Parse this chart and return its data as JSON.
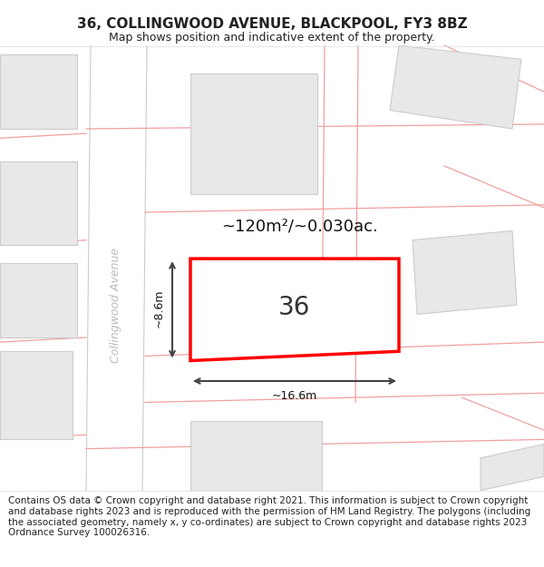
{
  "title": "36, COLLINGWOOD AVENUE, BLACKPOOL, FY3 8BZ",
  "subtitle": "Map shows position and indicative extent of the property.",
  "footer": "Contains OS data © Crown copyright and database right 2021. This information is subject to Crown copyright and database rights 2023 and is reproduced with the permission of HM Land Registry. The polygons (including the associated geometry, namely x, y co-ordinates) are subject to Crown copyright and database rights 2023 Ordnance Survey 100026316.",
  "area_label": "~120m²/~0.030ac.",
  "width_label": "~16.6m",
  "height_label": "~8.6m",
  "number_label": "36",
  "street_label": "Collingwood Avenue",
  "bg_color": "#ffffff",
  "plot_border_color": "#ff0000",
  "road_line_color": "#f0a0a0",
  "building_color": "#e8e8e8",
  "building_border": "#cccccc",
  "street_label_color": "#bbbbbb",
  "dim_line_color": "#444444",
  "title_fontsize": 11,
  "subtitle_fontsize": 9,
  "footer_fontsize": 7.5,
  "number_fontsize": 20,
  "area_fontsize": 13,
  "street_fontsize": 9
}
